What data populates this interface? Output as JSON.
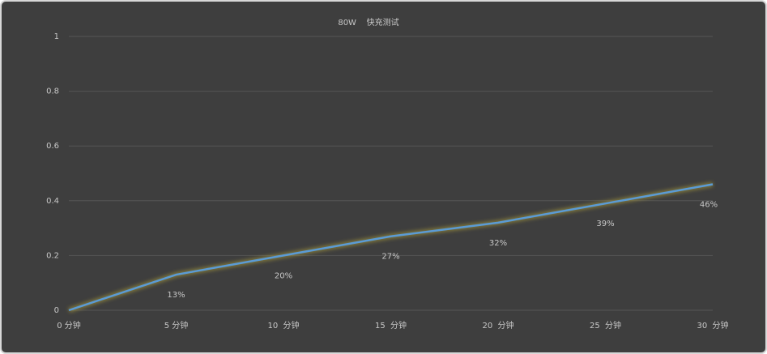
{
  "chart_data": {
    "type": "line",
    "title": "80W    快充测试",
    "categories": [
      "0 分钟",
      "5 分钟",
      "10  分钟",
      "15  分钟",
      "20  分钟",
      "25  分钟",
      "30  分钟"
    ],
    "series": [
      {
        "color": "#5b9bd5",
        "values": [
          0,
          0.13,
          0.2,
          0.27,
          0.32,
          0.39,
          0.46
        ],
        "value_labels": [
          null,
          "13%",
          "20%",
          "27%",
          "32%",
          "39%",
          "46%"
        ]
      }
    ],
    "ylim": [
      0,
      1
    ],
    "yticks": [
      0,
      0.2,
      0.4,
      0.6,
      0.8,
      1
    ],
    "grid": true
  }
}
